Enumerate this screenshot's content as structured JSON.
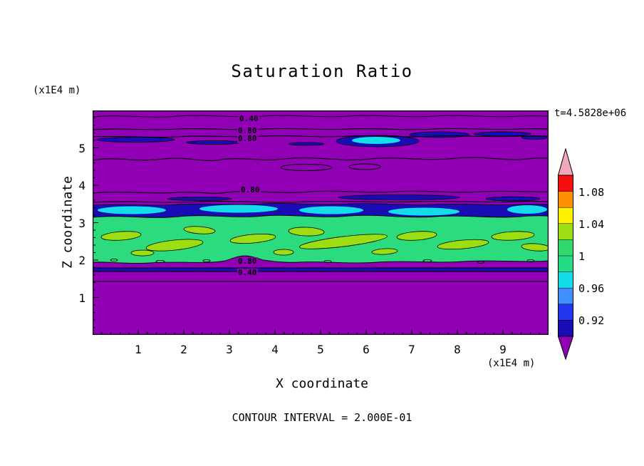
{
  "title": "Saturation Ratio",
  "time_label": "t=4.5828e+06",
  "footer_note": "CONTOUR INTERVAL = 2.000E-01",
  "x_axis": {
    "label": "X coordinate",
    "unit": "(x1E4 m)",
    "ticks": [
      "1",
      "2",
      "3",
      "4",
      "5",
      "6",
      "7",
      "8",
      "9"
    ]
  },
  "y_axis": {
    "label": "Z coordinate",
    "unit": "(x1E4 m)",
    "ticks": [
      "1",
      "2",
      "3",
      "4",
      "5"
    ]
  },
  "contour_labels": [
    "0.40",
    "0.80",
    "0.80",
    "0.80",
    "0.80",
    "0.40"
  ],
  "colorbar": {
    "labels": [
      "1.08",
      "1.04",
      "1",
      "0.96",
      "0.92"
    ],
    "top_color": "#F2A8BC",
    "bottom_color": "#9100B4",
    "bands": [
      {
        "range": "1.08-1.10",
        "color": "#F50F0F"
      },
      {
        "range": "1.06-1.08",
        "color": "#FF9000"
      },
      {
        "range": "1.04-1.06",
        "color": "#FFF200"
      },
      {
        "range": "1.02-1.04",
        "color": "#9CDE12"
      },
      {
        "range": "1.00-1.02",
        "color": "#2FD96B"
      },
      {
        "range": "0.98-1.00",
        "color": "#23DC85"
      },
      {
        "range": "0.96-0.98",
        "color": "#12DDE8"
      },
      {
        "range": "0.94-0.96",
        "color": "#3F8FFF"
      },
      {
        "range": "0.92-0.94",
        "color": "#2336EE"
      },
      {
        "range": "0.90-0.92",
        "color": "#1A0CB4"
      }
    ]
  },
  "colors": {
    "field_background": "#9100B4",
    "low_saturation_band": "#1A0CB4",
    "cyan_patch": "#12DDE8",
    "mid_band_green": "#2BDB7E",
    "blob_chartreuse": "#9CDE12",
    "contour_line": "#000000"
  },
  "chart_data": {
    "type": "heatmap",
    "title": "Saturation Ratio",
    "xlabel": "X coordinate (x1E4 m)",
    "ylabel": "Z coordinate (x1E4 m)",
    "xlim": [
      0,
      10
    ],
    "ylim": [
      0,
      6
    ],
    "x_ticks": [
      1,
      2,
      3,
      4,
      5,
      6,
      7,
      8,
      9
    ],
    "y_ticks": [
      1,
      2,
      3,
      4,
      5
    ],
    "time_annotation": "t=4.5828e+06",
    "contour_interval": 0.2,
    "labeled_contour_lines": [
      {
        "value": 0.4,
        "z_approx": 5.95
      },
      {
        "value": 0.8,
        "z_approx": 5.6
      },
      {
        "value": 0.8,
        "z_approx": 5.45
      },
      {
        "value": 0.8,
        "z_approx": 3.95
      },
      {
        "value": 0.8,
        "z_approx": 2.05
      },
      {
        "value": 0.4,
        "z_approx": 1.75
      }
    ],
    "colorbar_ticks": [
      1.08,
      1.04,
      1,
      0.96,
      0.92
    ],
    "colorbar_bands": [
      {
        "min": 1.1,
        "max": null,
        "color": "#F2A8BC"
      },
      {
        "min": 1.08,
        "max": 1.1,
        "color": "#F50F0F"
      },
      {
        "min": 1.06,
        "max": 1.08,
        "color": "#FF9000"
      },
      {
        "min": 1.04,
        "max": 1.06,
        "color": "#FFF200"
      },
      {
        "min": 1.02,
        "max": 1.04,
        "color": "#9CDE12"
      },
      {
        "min": 1.0,
        "max": 1.02,
        "color": "#2FD96B"
      },
      {
        "min": 0.98,
        "max": 1.0,
        "color": "#23DC85"
      },
      {
        "min": 0.96,
        "max": 0.98,
        "color": "#12DDE8"
      },
      {
        "min": 0.94,
        "max": 0.96,
        "color": "#3F8FFF"
      },
      {
        "min": 0.92,
        "max": 0.94,
        "color": "#2336EE"
      },
      {
        "min": 0.9,
        "max": 0.92,
        "color": "#1A0CB4"
      },
      {
        "min": null,
        "max": 0.9,
        "color": "#9100B4"
      }
    ],
    "field_summary": [
      {
        "z_range": [
          0.0,
          1.7
        ],
        "saturation": "<0.90",
        "note": "uniform purple background"
      },
      {
        "z_range": [
          1.69,
          1.79
        ],
        "saturation": "0.90-0.92",
        "note": "thin dark-blue horizontal band bounded by 0.80/0.40 contour lines"
      },
      {
        "z_range": [
          1.95,
          3.1
        ],
        "saturation": "0.98-1.04",
        "note": "green band spanning full width with elongated yellow-green lenses"
      },
      {
        "z_range": [
          3.1,
          3.5
        ],
        "saturation": "0.90-0.98",
        "note": "dark-blue band with cyan elongated patches spanning full width"
      },
      {
        "z_range": [
          3.5,
          4.6
        ],
        "saturation": "<0.90",
        "note": "purple with thin dark-blue streaks near z=3.6 and small closed 0.x contours near z=4.5"
      },
      {
        "z_range": [
          4.9,
          5.5
        ],
        "saturation": "0.88-0.96 locally",
        "note": "thin dark-blue streaks and one cyan patch near x=5.8, 0.40/0.80/0.80 labeled contours near top"
      }
    ]
  }
}
